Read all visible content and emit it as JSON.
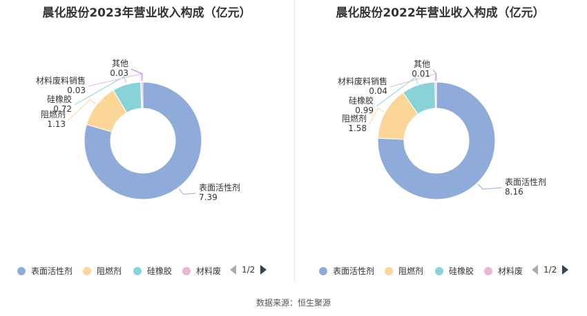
{
  "source": "数据来源：恒生聚源",
  "colors": {
    "表面活性剂": "#8eabd9",
    "阻燃剂": "#fbd697",
    "硅橡胶": "#88d3d8",
    "材料废料销售": "#e8b7d6",
    "其他": "#9b8ee3"
  },
  "chart_data": [
    {
      "type": "pie",
      "title": "晨化股份2023年营业收入构成（亿元）",
      "categories": [
        "表面活性剂",
        "阻燃剂",
        "硅橡胶",
        "材料废料销售",
        "其他"
      ],
      "values": [
        7.39,
        1.13,
        0.72,
        0.03,
        0.03
      ],
      "value_labels": [
        "7.39",
        "1.13",
        "0.72",
        "0.03",
        "0.03"
      ],
      "legend": [
        "表面活性剂",
        "阻燃剂",
        "硅橡胶",
        "材料废"
      ],
      "legend_placement": "bottom",
      "pager": "1/2"
    },
    {
      "type": "pie",
      "title": "晨化股份2022年营业收入构成（亿元）",
      "categories": [
        "表面活性剂",
        "阻燃剂",
        "硅橡胶",
        "材料废料销售",
        "其他"
      ],
      "values": [
        8.16,
        1.58,
        0.99,
        0.04,
        0.01
      ],
      "value_labels": [
        "8.16",
        "1.58",
        "0.99",
        "0.04",
        "0.01"
      ],
      "legend": [
        "表面活性剂",
        "阻燃剂",
        "硅橡胶",
        "材料废"
      ],
      "legend_placement": "bottom",
      "pager": "1/2"
    }
  ]
}
